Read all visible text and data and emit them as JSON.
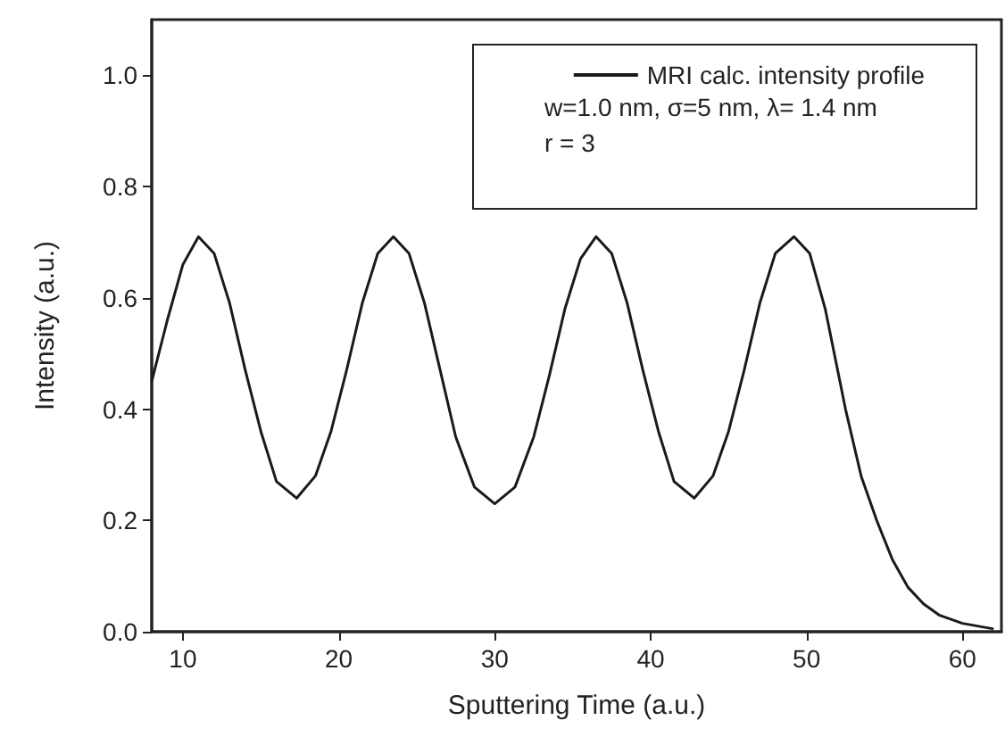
{
  "chart_data": {
    "type": "line",
    "xlabel": "Sputtering Time (a.u.)",
    "ylabel": "Intensity (a.u.)",
    "x": [
      8,
      9,
      10,
      11,
      12,
      13,
      14,
      15,
      16,
      17.3,
      18.5,
      19.5,
      20.5,
      21.5,
      22.5,
      23.5,
      24.5,
      25.5,
      26.5,
      27.5,
      28.7,
      30,
      31.3,
      32.5,
      33.5,
      34.5,
      35.5,
      36.5,
      37.5,
      38.5,
      39.5,
      40.5,
      41.5,
      42.8,
      44,
      45,
      46,
      47,
      48,
      49.2,
      50.2,
      51.2,
      52.5,
      53.5,
      54.5,
      55.5,
      56.5,
      57.5,
      58.5,
      60,
      62
    ],
    "series": [
      {
        "name": "MRI calc. intensity profile",
        "color": "#1a1a1a",
        "values": [
          0.45,
          0.56,
          0.66,
          0.71,
          0.68,
          0.59,
          0.47,
          0.36,
          0.27,
          0.24,
          0.28,
          0.36,
          0.47,
          0.59,
          0.68,
          0.71,
          0.68,
          0.59,
          0.47,
          0.35,
          0.26,
          0.23,
          0.26,
          0.35,
          0.46,
          0.58,
          0.67,
          0.71,
          0.68,
          0.59,
          0.47,
          0.36,
          0.27,
          0.24,
          0.28,
          0.36,
          0.47,
          0.59,
          0.68,
          0.71,
          0.68,
          0.58,
          0.4,
          0.28,
          0.2,
          0.13,
          0.08,
          0.05,
          0.03,
          0.015,
          0.005
        ]
      }
    ],
    "annotations": [
      "w=1.0 nm, σ=5 nm, λ= 1.4 nm",
      "r = 3"
    ],
    "xlim": [
      8,
      62.5
    ],
    "xticks": [
      10,
      20,
      30,
      40,
      50,
      60
    ],
    "ylim": [
      0,
      1.1
    ],
    "yticks": [
      {
        "value": 0,
        "label": "0.0"
      },
      0.2,
      0.4,
      0.6,
      0.8,
      {
        "value": 1,
        "label": "1.0"
      }
    ],
    "legend": "top right",
    "marker": "none",
    "line_style": "solid",
    "grid": false
  }
}
